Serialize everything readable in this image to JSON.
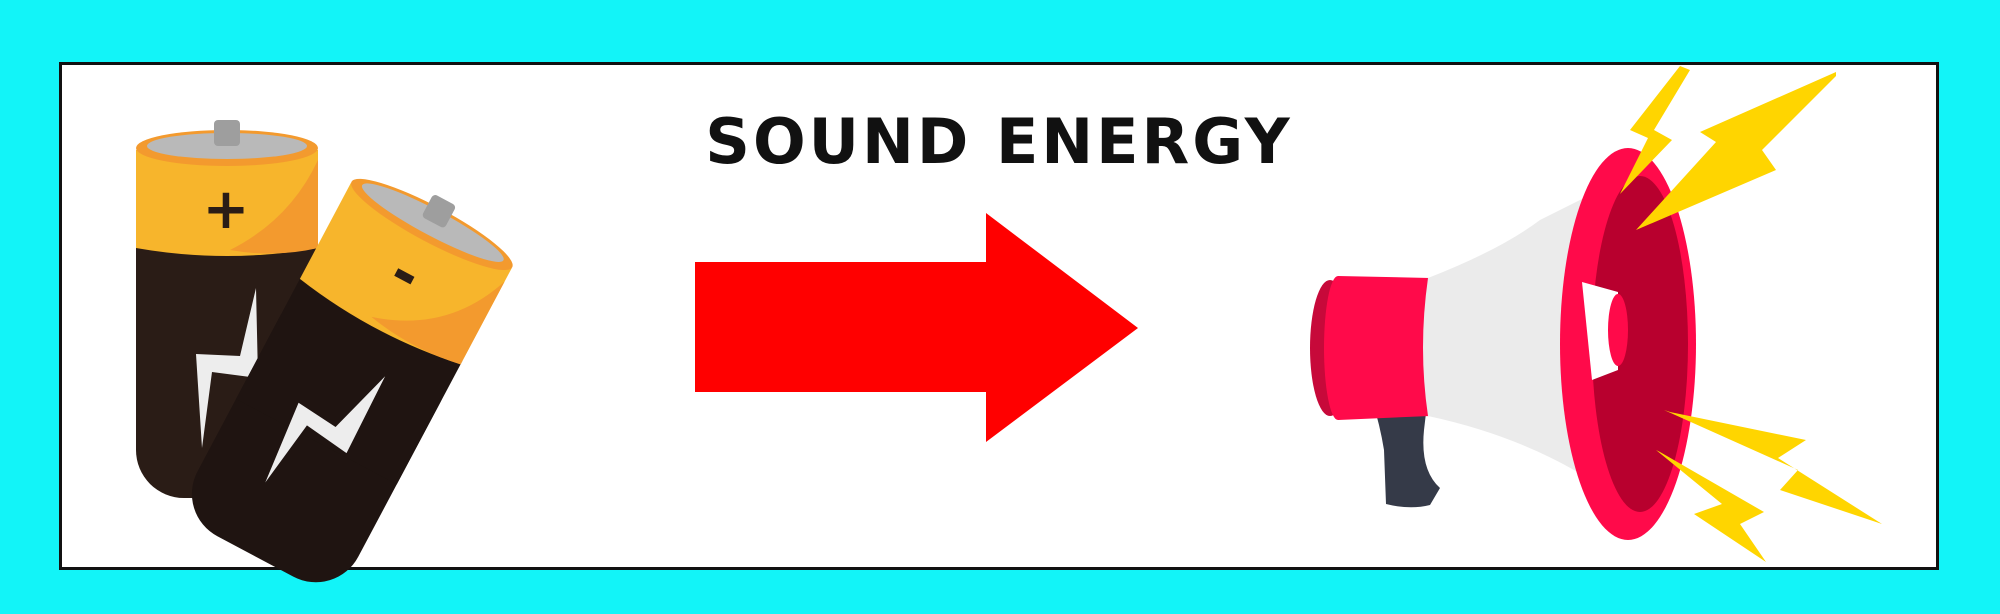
{
  "title": "SOUND ENERGY",
  "colors": {
    "background": "#12F4F8",
    "panel": "#FFFFFF",
    "border": "#111111",
    "arrow": "#FF0000",
    "battery_top": "#F7B52C",
    "battery_body": "#2A1C16",
    "megaphone_red": "#FF0A4A",
    "bolt_yellow": "#FFD500"
  },
  "icons": {
    "source": "batteries-icon",
    "conversion": "right-arrow-icon",
    "output": "megaphone-icon",
    "effect": "lightning-bolt-icon"
  },
  "battery_symbols": {
    "positive": "+",
    "negative": "-"
  }
}
